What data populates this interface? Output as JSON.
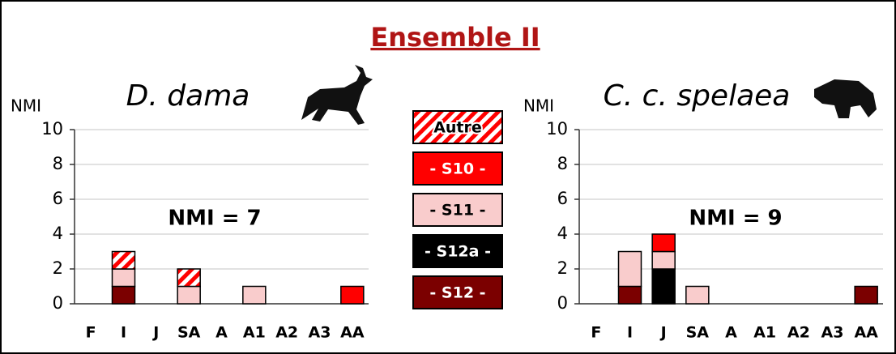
{
  "title": "Ensemble II",
  "chart_data": [
    {
      "type": "bar",
      "stacked": true,
      "title": "D. dama",
      "y_label": "NMI",
      "annotation": "NMI = 7",
      "categories": [
        "F",
        "I",
        "J",
        "SA",
        "A",
        "A1",
        "A2",
        "A3",
        "AA"
      ],
      "ylim": [
        0,
        10
      ],
      "yticks": [
        0,
        2,
        4,
        6,
        8,
        10
      ],
      "grid": true,
      "series": [
        {
          "name": "- S12 -",
          "color": "#7b0000",
          "values": [
            0,
            1,
            0,
            0,
            0,
            0,
            0,
            0,
            0
          ]
        },
        {
          "name": "- S12a -",
          "color": "#000000",
          "values": [
            0,
            0,
            0,
            0,
            0,
            0,
            0,
            0,
            0
          ]
        },
        {
          "name": "- S11 -",
          "color": "#f9cccc",
          "values": [
            0,
            1,
            0,
            1,
            0,
            1,
            0,
            0,
            0
          ]
        },
        {
          "name": "- S10 -",
          "color": "#ff0000",
          "values": [
            0,
            0,
            0,
            0,
            0,
            0,
            0,
            0,
            1
          ]
        },
        {
          "name": "Autre",
          "color": "#ff0000",
          "hatch": true,
          "values": [
            0,
            1,
            0,
            1,
            0,
            0,
            0,
            0,
            0
          ]
        }
      ]
    },
    {
      "type": "bar",
      "stacked": true,
      "title": "C. c. spelaea",
      "y_label": "NMI",
      "annotation": "NMI = 9",
      "categories": [
        "F",
        "I",
        "J",
        "SA",
        "A",
        "A1",
        "A2",
        "A3",
        "AA"
      ],
      "ylim": [
        0,
        10
      ],
      "yticks": [
        0,
        2,
        4,
        6,
        8,
        10
      ],
      "grid": true,
      "series": [
        {
          "name": "- S12 -",
          "color": "#7b0000",
          "values": [
            0,
            1,
            0,
            0,
            0,
            0,
            0,
            0,
            1
          ]
        },
        {
          "name": "- S12a -",
          "color": "#000000",
          "values": [
            0,
            0,
            2,
            0,
            0,
            0,
            0,
            0,
            0
          ]
        },
        {
          "name": "- S11 -",
          "color": "#f9cccc",
          "values": [
            0,
            2,
            1,
            1,
            0,
            0,
            0,
            0,
            0
          ]
        },
        {
          "name": "- S10 -",
          "color": "#ff0000",
          "values": [
            0,
            0,
            1,
            0,
            0,
            0,
            0,
            0,
            0
          ]
        },
        {
          "name": "Autre",
          "color": "#ff0000",
          "hatch": true,
          "values": [
            0,
            0,
            0,
            0,
            0,
            0,
            0,
            0,
            0
          ]
        }
      ]
    }
  ]
}
